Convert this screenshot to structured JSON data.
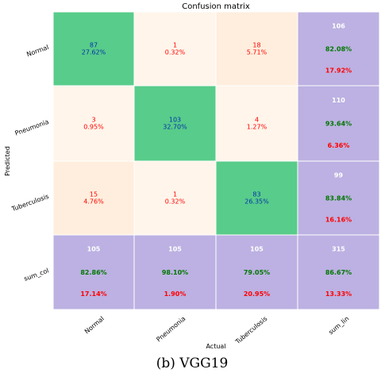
{
  "chart_data": {
    "type": "heatmap",
    "title": "Confusion matrix",
    "xlabel": "Actual",
    "ylabel": "Predicted",
    "x_tick_labels": [
      "Normal",
      "Pneumonia",
      "Tuberculosis",
      "sum_lin"
    ],
    "y_tick_labels": [
      "Normal",
      "Pneumonia",
      "Tuberculosis",
      "sum_col"
    ],
    "matrix": [
      [
        87,
        1,
        18
      ],
      [
        3,
        103,
        4
      ],
      [
        15,
        1,
        83
      ]
    ],
    "matrix_percent": [
      [
        "27.62%",
        "0.32%",
        "5.71%"
      ],
      [
        "0.95%",
        "32.70%",
        "1.27%"
      ],
      [
        "4.76%",
        "0.32%",
        "26.35%"
      ]
    ],
    "row_totals": [
      {
        "total": 106,
        "correct": "82.08%",
        "error": "17.92%"
      },
      {
        "total": 110,
        "correct": "93.64%",
        "error": "6.36%"
      },
      {
        "total": 99,
        "correct": "83.84%",
        "error": "16.16%"
      }
    ],
    "col_totals": [
      {
        "total": 105,
        "correct": "82.86%",
        "error": "17.14%"
      },
      {
        "total": 105,
        "correct": "98.10%",
        "error": "1.90%"
      },
      {
        "total": 105,
        "correct": "79.05%",
        "error": "20.95%"
      }
    ],
    "grand_total": {
      "total": 315,
      "correct": "86.67%",
      "error": "13.33%"
    },
    "grid": false,
    "colors": {
      "diagonal": "#58cc8a",
      "off_light": "#fff5ea",
      "off_mid": "#ffeedd",
      "summary": "#bcb1e2",
      "diag_text": "#0033aa",
      "off_text": "#ff0000",
      "sum_total": "#ffffff",
      "sum_correct": "#007700",
      "sum_error": "#ff0000"
    }
  },
  "caption": "(b) VGG19"
}
